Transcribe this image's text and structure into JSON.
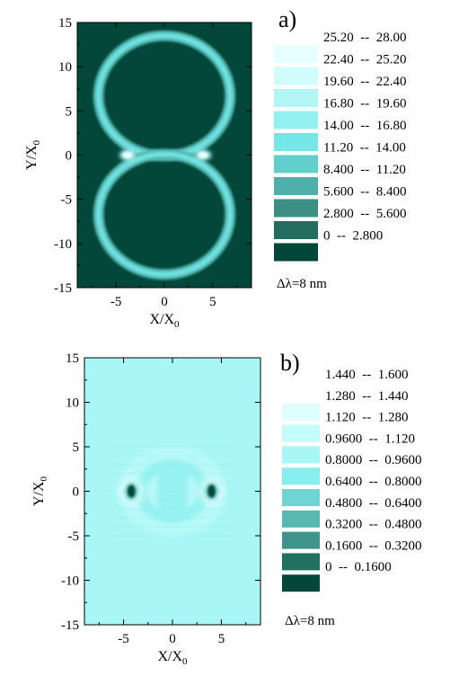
{
  "chart_data": [
    {
      "type": "heatmap",
      "panel_label": "a)",
      "xlabel": "X/X",
      "xlabel_sub": "0",
      "ylabel": "Y/X",
      "ylabel_sub": "0",
      "xlim": [
        -9,
        9
      ],
      "ylim": [
        -15,
        15
      ],
      "xticks": [
        -5,
        0,
        5
      ],
      "yticks": [
        -15,
        -10,
        -5,
        0,
        5,
        10,
        15
      ],
      "features": {
        "rings": [
          {
            "cx": 0,
            "cy": 6.7,
            "r": 6.8
          },
          {
            "cx": 0,
            "cy": -6.7,
            "r": 6.8
          }
        ],
        "hot_spots": [
          {
            "x": -3.8,
            "y": 0
          },
          {
            "x": 4.0,
            "y": 0
          }
        ]
      },
      "background_level": "0 -- 2.800",
      "legend": [
        {
          "label": "25.20  --  28.00",
          "color": "#e8ffff"
        },
        {
          "label": "22.40  --  25.20",
          "color": "#d0fcfc"
        },
        {
          "label": "19.60  --  22.40",
          "color": "#b3f6f6"
        },
        {
          "label": "16.80  --  19.60",
          "color": "#93f0f0"
        },
        {
          "label": "14.00  --  16.80",
          "color": "#75e7e7"
        },
        {
          "label": "11.20  --  14.00",
          "color": "#62cfcc"
        },
        {
          "label": "8.400  --  11.20",
          "color": "#4fb0aa"
        },
        {
          "label": "5.600  --  8.400",
          "color": "#3d8f86"
        },
        {
          "label": "2.800  --  5.600",
          "color": "#246b60"
        },
        {
          "label": "0  --  2.800",
          "color": "#02473a"
        }
      ],
      "annotation": "Δλ=8 nm"
    },
    {
      "type": "heatmap",
      "panel_label": "b)",
      "xlabel": "X/X",
      "xlabel_sub": "0",
      "ylabel": "Y/X",
      "ylabel_sub": "0",
      "xlim": [
        -9,
        9
      ],
      "ylim": [
        -15,
        15
      ],
      "xticks": [
        -5,
        0,
        5
      ],
      "yticks": [
        -15,
        -10,
        -5,
        0,
        5,
        10,
        15
      ],
      "features": {
        "dark_spots": [
          {
            "x": -4.2,
            "y": 0
          },
          {
            "x": 4.0,
            "y": 0
          }
        ]
      },
      "background_level": "0.9600  --  1.120",
      "legend": [
        {
          "label": "1.440  --  1.600",
          "color": "#ffffff"
        },
        {
          "label": "1.280  --  1.440",
          "color": "#e0fefe"
        },
        {
          "label": "1.120  --  1.280",
          "color": "#c4fbfb"
        },
        {
          "label": "0.9600  --  1.120",
          "color": "#a8f6f6"
        },
        {
          "label": "0.8000  --  0.9600",
          "color": "#88eded"
        },
        {
          "label": "0.6400  --  0.8000",
          "color": "#6fd5d2"
        },
        {
          "label": "0.4800  --  0.6400",
          "color": "#58b9b3"
        },
        {
          "label": "0.3200  --  0.4800",
          "color": "#3f948b"
        },
        {
          "label": "0.1600  --  0.3200",
          "color": "#247060"
        },
        {
          "label": "0  --  0.1600",
          "color": "#02473a"
        }
      ],
      "annotation": "Δλ=8 nm"
    }
  ]
}
